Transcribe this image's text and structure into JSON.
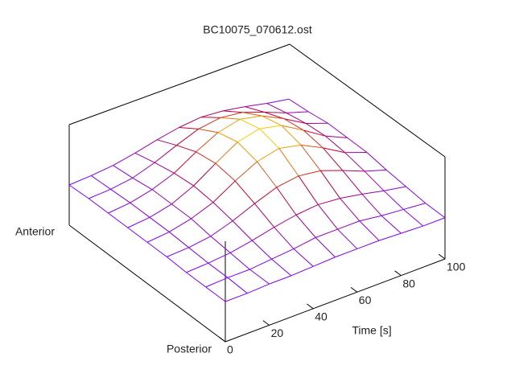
{
  "chart_data": {
    "type": "surface",
    "title": "BC10075_070612.ost",
    "x_label": "Time [s]",
    "y_end_labels": [
      "Posterior",
      "Anterior"
    ],
    "x": [
      0,
      10,
      20,
      30,
      40,
      50,
      60,
      70,
      80,
      90,
      100
    ],
    "xlim": [
      0,
      100
    ],
    "xticks": [
      0,
      20,
      40,
      60,
      80,
      100
    ],
    "zlim": [
      0,
      1
    ],
    "colormap": [
      "#7a00ff",
      "#c4002a",
      "#ffe000"
    ],
    "z": [
      [
        0.4,
        0.4,
        0.41,
        0.41,
        0.42,
        0.43,
        0.43,
        0.43,
        0.42,
        0.41,
        0.41
      ],
      [
        0.4,
        0.41,
        0.41,
        0.43,
        0.45,
        0.48,
        0.48,
        0.48,
        0.45,
        0.43,
        0.41
      ],
      [
        0.4,
        0.41,
        0.43,
        0.47,
        0.52,
        0.56,
        0.58,
        0.56,
        0.52,
        0.47,
        0.43
      ],
      [
        0.41,
        0.42,
        0.45,
        0.52,
        0.61,
        0.69,
        0.72,
        0.69,
        0.61,
        0.52,
        0.45
      ],
      [
        0.41,
        0.43,
        0.48,
        0.56,
        0.69,
        0.8,
        0.85,
        0.8,
        0.69,
        0.56,
        0.48
      ],
      [
        0.41,
        0.43,
        0.48,
        0.58,
        0.72,
        0.85,
        0.9,
        0.85,
        0.72,
        0.58,
        0.48
      ],
      [
        0.41,
        0.43,
        0.48,
        0.56,
        0.69,
        0.8,
        0.85,
        0.8,
        0.69,
        0.56,
        0.48
      ],
      [
        0.41,
        0.42,
        0.45,
        0.52,
        0.61,
        0.69,
        0.72,
        0.69,
        0.61,
        0.52,
        0.45
      ],
      [
        0.4,
        0.41,
        0.43,
        0.47,
        0.52,
        0.56,
        0.58,
        0.56,
        0.52,
        0.47,
        0.43
      ]
    ]
  }
}
